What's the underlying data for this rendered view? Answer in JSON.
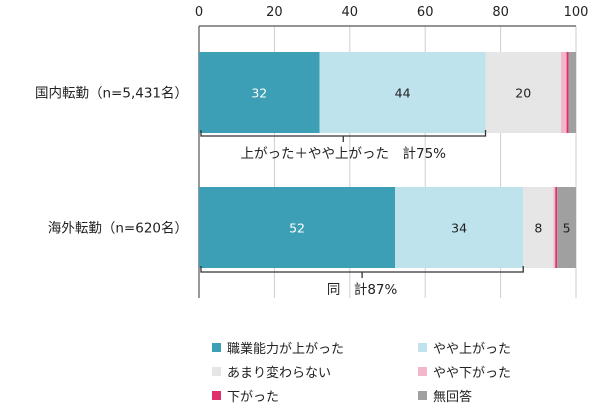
{
  "chart_data": {
    "type": "bar",
    "orientation": "horizontal",
    "stacked": true,
    "x_axis": {
      "range": [
        0,
        100
      ],
      "ticks": [
        "0",
        "20",
        "40",
        "60",
        "80",
        "100"
      ],
      "position": "top",
      "grid": true
    },
    "categories": [
      "国内転勤（n=5,431名）",
      "海外転勤（n=620名）"
    ],
    "series": [
      {
        "name": "職業能力が上がった",
        "color": "#3d9fb6",
        "values": [
          32,
          52
        ],
        "labels": [
          "32",
          "52"
        ]
      },
      {
        "name": "やや上がった",
        "color": "#bfe3ec",
        "values": [
          44,
          34
        ],
        "labels": [
          "44",
          "34"
        ]
      },
      {
        "name": "あまり変わらない",
        "color": "#e6e6e6",
        "values": [
          20,
          8
        ],
        "labels": [
          "20",
          "8"
        ]
      },
      {
        "name": "やや下がった",
        "color": "#f2b8c9",
        "values": [
          1.5,
          0.5
        ],
        "labels": [
          "",
          ""
        ]
      },
      {
        "name": "下がった",
        "color": "#e0306b",
        "values": [
          0.5,
          0.5
        ],
        "labels": [
          "",
          ""
        ]
      },
      {
        "name": "無回答",
        "color": "#a0a0a0",
        "values": [
          2,
          5
        ],
        "labels": [
          "",
          "5"
        ]
      }
    ],
    "annotations": [
      {
        "text": "上がった＋やや上がった　計75%",
        "category": "国内転勤（n=5,431名）",
        "span": [
          0,
          76
        ]
      },
      {
        "text": "同　計87%",
        "category": "海外転勤（n=620名）",
        "span": [
          0,
          86
        ]
      }
    ],
    "legend": {
      "placement": "bottom",
      "columns": 2
    }
  }
}
